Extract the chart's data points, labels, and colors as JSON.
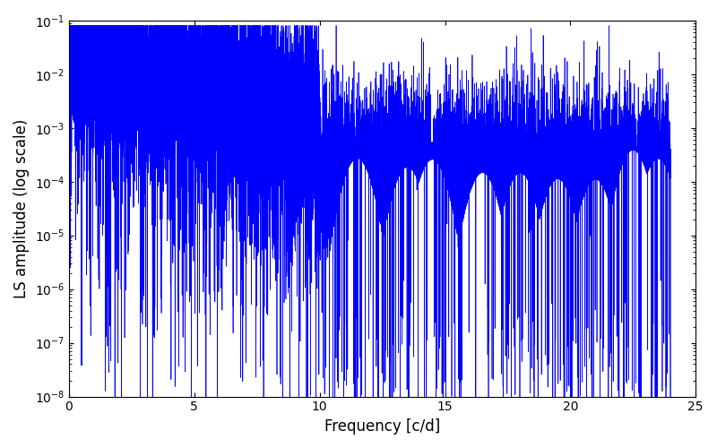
{
  "xlabel": "Frequency [c/d]",
  "ylabel": "LS amplitude (log scale)",
  "xlim": [
    0,
    25
  ],
  "ylim": [
    1e-08,
    0.1
  ],
  "line_color": "#0000ff",
  "line_width": 0.5,
  "background_color": "#ffffff",
  "figsize": [
    8.0,
    5.0
  ],
  "dpi": 100,
  "seed": 12345,
  "freq_max": 24.0,
  "n_points": 15000,
  "yticks": [
    1e-08,
    1e-07,
    1e-06,
    1e-05,
    0.0001,
    0.001,
    0.01,
    0.1
  ]
}
